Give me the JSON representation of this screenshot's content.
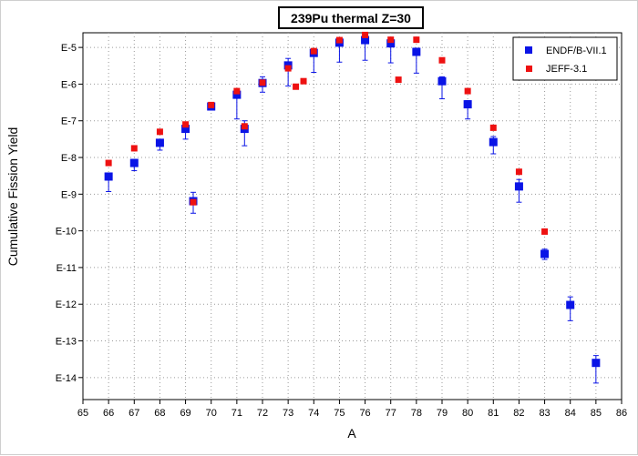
{
  "chart_data": {
    "type": "scatter",
    "title": "239Pu thermal Z=30",
    "xlabel": "A",
    "ylabel": "Cumulative Fission Yield",
    "xlim": [
      65,
      86
    ],
    "ylim_exponent": [
      -14.6,
      -4.6
    ],
    "y_scale": "log",
    "grid": true,
    "legend_position": "top-right",
    "x_ticks": [
      "65",
      "66",
      "67",
      "68",
      "69",
      "70",
      "71",
      "72",
      "73",
      "74",
      "75",
      "76",
      "77",
      "78",
      "79",
      "80",
      "81",
      "82",
      "83",
      "84",
      "85",
      "86"
    ],
    "y_ticks": [
      {
        "label": "E-5",
        "exponent": -5
      },
      {
        "label": "E-6",
        "exponent": -6
      },
      {
        "label": "E-7",
        "exponent": -7
      },
      {
        "label": "E-8",
        "exponent": -8
      },
      {
        "label": "E-9",
        "exponent": -9
      },
      {
        "label": "E-10",
        "exponent": -10
      },
      {
        "label": "E-11",
        "exponent": -11
      },
      {
        "label": "E-12",
        "exponent": -12
      },
      {
        "label": "E-13",
        "exponent": -13
      },
      {
        "label": "E-14",
        "exponent": -14
      }
    ],
    "series": [
      {
        "name": "ENDF/B-VII.1",
        "color": "#0a14e6",
        "marker": "square",
        "points": [
          {
            "x": 66,
            "y": "3.0E-9",
            "log": -8.52,
            "err_low": -8.93,
            "err_high": -8.45
          },
          {
            "x": 67,
            "y": "7.0E-9",
            "log": -8.15,
            "err_low": -8.36,
            "err_high": -8.05
          },
          {
            "x": 68,
            "y": "2.5E-8",
            "log": -7.6,
            "err_low": -7.8,
            "err_high": -7.53
          },
          {
            "x": 69,
            "y": "6.0E-8",
            "log": -7.22,
            "err_low": -7.5,
            "err_high": -7.15
          },
          {
            "x": 69.3,
            "y": "6.5E-10",
            "log": -9.19,
            "err_low": -9.52,
            "err_high": -8.95
          },
          {
            "x": 70,
            "y": "2.5E-7",
            "log": -6.61,
            "err_low": -6.7,
            "err_high": -6.56
          },
          {
            "x": 71,
            "y": "5.0E-7",
            "log": -6.29,
            "err_low": -6.95,
            "err_high": -6.24
          },
          {
            "x": 71.3,
            "y": "6.0E-8",
            "log": -7.22,
            "err_low": -7.68,
            "err_high": -7.0
          },
          {
            "x": 72,
            "y": "1.1E-6",
            "log": -5.97,
            "err_low": -6.22,
            "err_high": -5.8
          },
          {
            "x": 73,
            "y": "3.2E-6",
            "log": -5.49,
            "err_low": -6.05,
            "err_high": -5.3
          },
          {
            "x": 74,
            "y": "7.0E-6",
            "log": -5.15,
            "err_low": -5.68,
            "err_high": -5.05
          },
          {
            "x": 75,
            "y": "1.35E-5",
            "log": -4.87,
            "err_low": -5.4,
            "err_high": -4.8
          },
          {
            "x": 76,
            "y": "1.6E-5",
            "log": -4.8,
            "err_low": -5.35,
            "err_high": -4.73
          },
          {
            "x": 77,
            "y": "1.3E-5",
            "log": -4.89,
            "err_low": -5.42,
            "err_high": -4.83
          },
          {
            "x": 78,
            "y": "7.5E-6",
            "log": -5.12,
            "err_low": -5.7,
            "err_high": -5.03
          },
          {
            "x": 79,
            "y": "1.2E-6",
            "log": -5.92,
            "err_low": -6.4,
            "err_high": -5.8
          },
          {
            "x": 80,
            "y": "2.8E-7",
            "log": -6.55,
            "err_low": -6.95,
            "err_high": -6.45
          },
          {
            "x": 81,
            "y": "2.6E-8",
            "log": -7.58,
            "err_low": -7.9,
            "err_high": -7.43
          },
          {
            "x": 82,
            "y": "1.6E-9",
            "log": -8.79,
            "err_low": -9.22,
            "err_high": -8.6
          },
          {
            "x": 83,
            "y": "2.3E-11",
            "log": -10.63,
            "err_low": -10.78,
            "err_high": -10.5
          },
          {
            "x": 84,
            "y": "9.5E-13",
            "log": -12.02,
            "err_low": -12.45,
            "err_high": -11.8
          },
          {
            "x": 85,
            "y": "2.5E-14",
            "log": -13.6,
            "err_low": -14.15,
            "err_high": -13.4
          }
        ]
      },
      {
        "name": "JEFF-3.1",
        "color": "#ee1111",
        "marker": "square",
        "points": [
          {
            "x": 66,
            "y": "7.0E-9",
            "log": -8.15
          },
          {
            "x": 67,
            "y": "1.8E-8",
            "log": -7.75
          },
          {
            "x": 68,
            "y": "5.0E-8",
            "log": -7.3
          },
          {
            "x": 69,
            "y": "8.0E-8",
            "log": -7.1
          },
          {
            "x": 69.3,
            "y": "6.0E-10",
            "log": -9.22
          },
          {
            "x": 70,
            "y": "2.7E-7",
            "log": -6.57
          },
          {
            "x": 71,
            "y": "6.5E-7",
            "log": -6.19
          },
          {
            "x": 71.3,
            "y": "7.0E-8",
            "log": -7.15
          },
          {
            "x": 72,
            "y": "1.1E-6",
            "log": -5.96
          },
          {
            "x": 73,
            "y": "2.7E-6",
            "log": -5.57
          },
          {
            "x": 73.3,
            "y": "8.5E-7",
            "log": -6.07
          },
          {
            "x": 73.6,
            "y": "1.2E-6",
            "log": -5.92
          },
          {
            "x": 74,
            "y": "8.0E-6",
            "log": -5.1
          },
          {
            "x": 75,
            "y": "1.6E-5",
            "log": -4.8
          },
          {
            "x": 76,
            "y": "2.2E-5",
            "log": -4.66
          },
          {
            "x": 77,
            "y": "1.6E-5",
            "log": -4.79
          },
          {
            "x": 77.3,
            "y": "1.3E-6",
            "log": -5.88
          },
          {
            "x": 78,
            "y": "1.6E-5",
            "log": -4.79
          },
          {
            "x": 79,
            "y": "4.5E-6",
            "log": -5.35
          },
          {
            "x": 80,
            "y": "6.5E-7",
            "log": -6.19
          },
          {
            "x": 81,
            "y": "6.5E-8",
            "log": -7.19
          },
          {
            "x": 82,
            "y": "4.0E-9",
            "log": -8.39
          },
          {
            "x": 83,
            "y": "9.5E-11",
            "log": -10.02
          }
        ]
      }
    ]
  }
}
